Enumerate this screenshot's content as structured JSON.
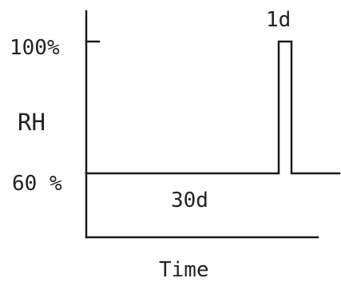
{
  "diagram": {
    "y_axis_title": "RH",
    "x_axis_title": "Time",
    "y_tick_high": "100%",
    "y_tick_low": "60 %",
    "baseline_duration": "30d",
    "pulse_duration": "1d",
    "line_color": "#1a1a1a"
  }
}
